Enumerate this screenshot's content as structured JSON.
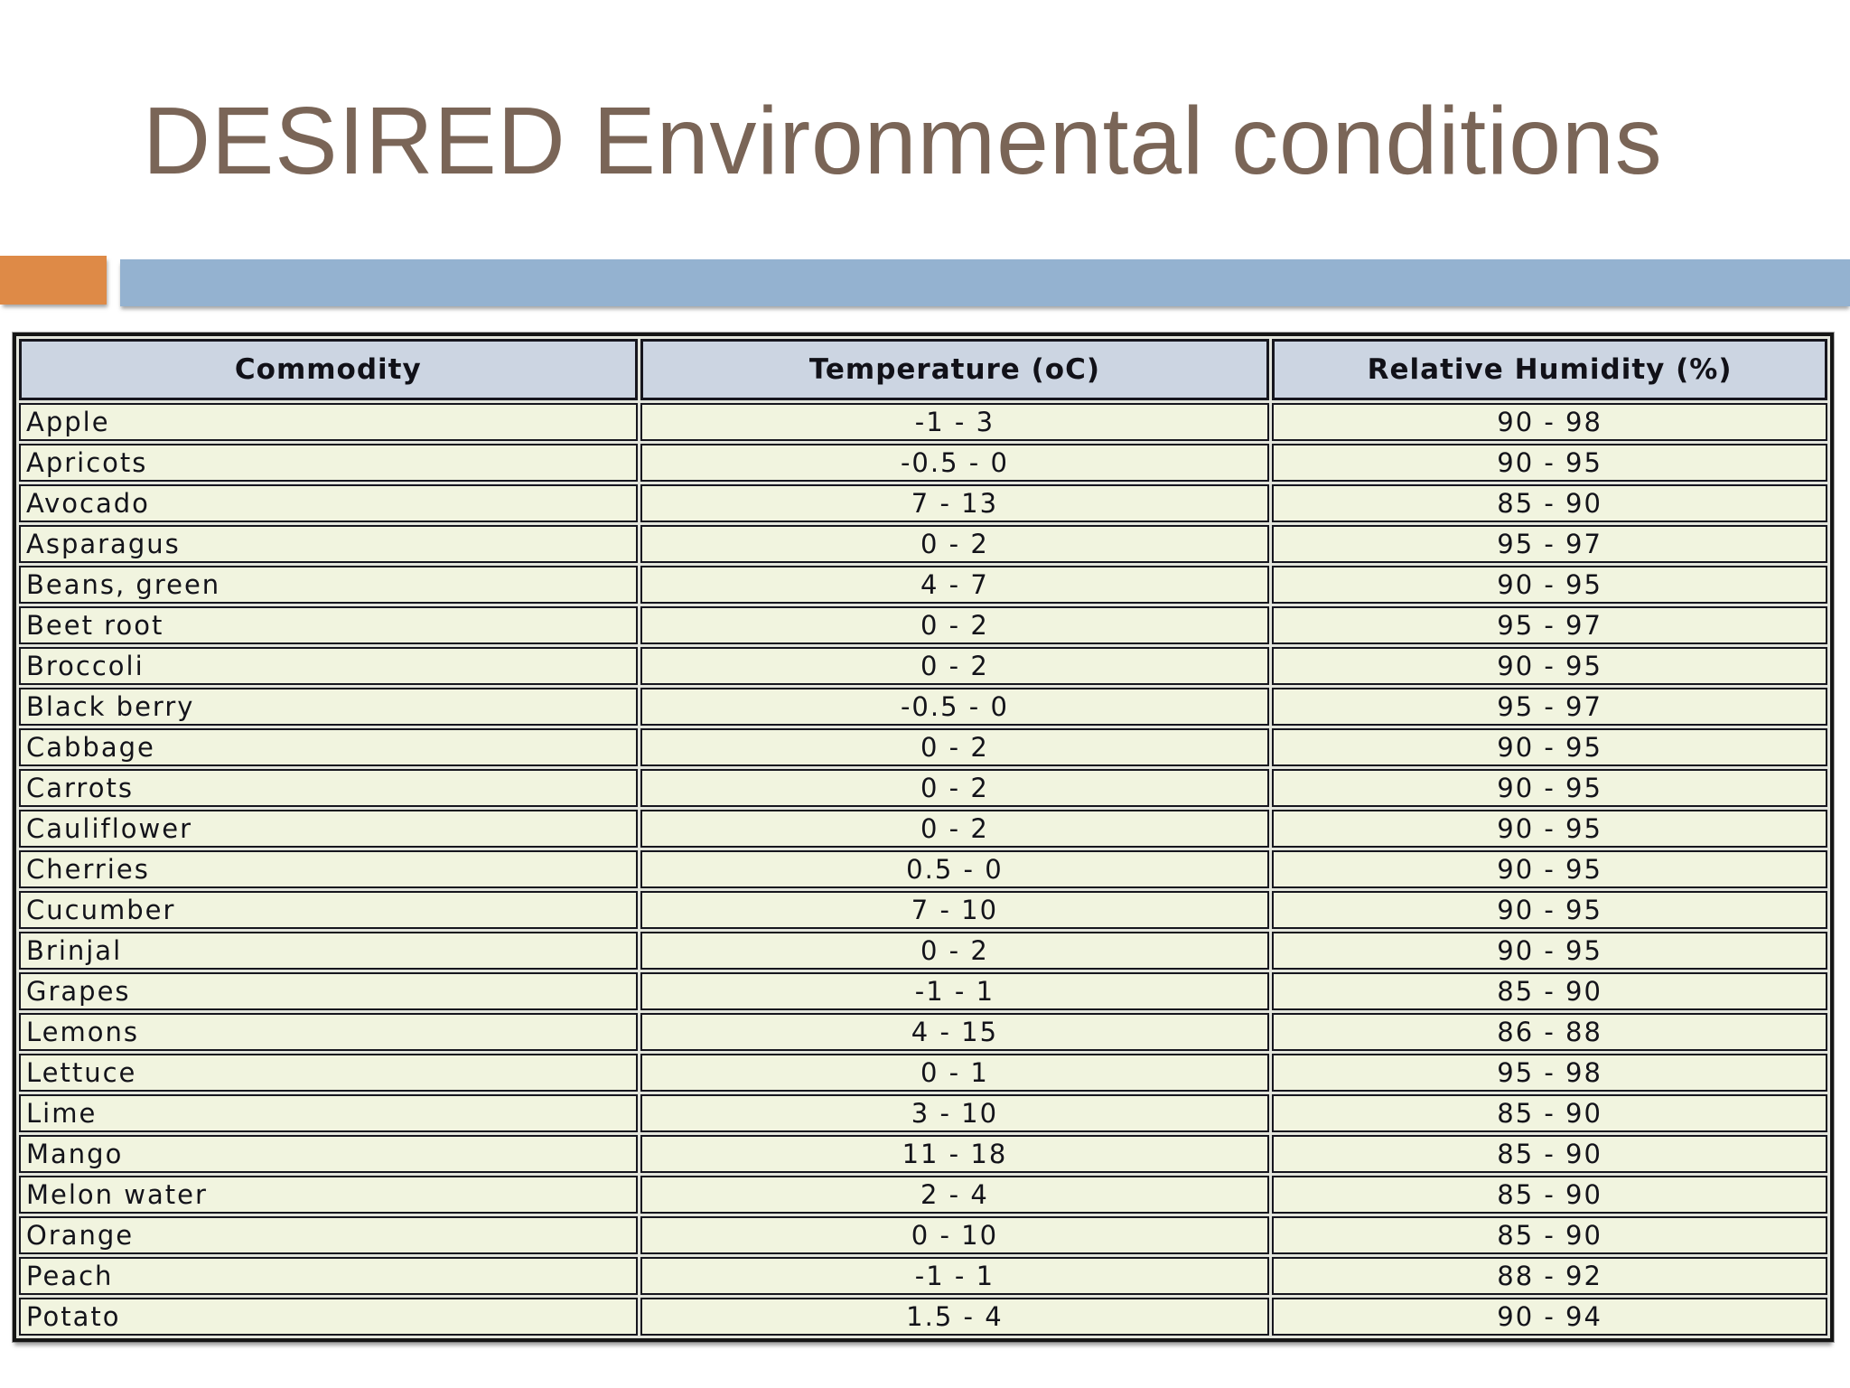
{
  "slide": {
    "title": "DESIRED Environmental conditions"
  },
  "accent": {
    "orange": "#de8a47",
    "blue": "#94b2d0"
  },
  "table": {
    "columns": [
      "Commodity",
      "Temperature (oC)",
      "Relative Humidity (%)"
    ],
    "rows": [
      [
        "Apple",
        "-1 - 3",
        "90 - 98"
      ],
      [
        "Apricots",
        "-0.5 - 0",
        "90 - 95"
      ],
      [
        "Avocado",
        "7 - 13",
        "85 - 90"
      ],
      [
        "Asparagus",
        "0 - 2",
        "95 - 97"
      ],
      [
        "Beans, green",
        "4 - 7",
        "90 - 95"
      ],
      [
        "Beet root",
        "0 - 2",
        "95 - 97"
      ],
      [
        "Broccoli",
        "0 - 2",
        "90 - 95"
      ],
      [
        "Black berry",
        "-0.5 - 0",
        "95 - 97"
      ],
      [
        "Cabbage",
        "0 - 2",
        "90 - 95"
      ],
      [
        "Carrots",
        "0 - 2",
        "90 - 95"
      ],
      [
        "Cauliflower",
        "0 - 2",
        "90 - 95"
      ],
      [
        "Cherries",
        "0.5 - 0",
        "90 - 95"
      ],
      [
        "Cucumber",
        "7 - 10",
        "90 - 95"
      ],
      [
        "Brinjal",
        "0 - 2",
        "90 - 95"
      ],
      [
        "Grapes",
        "-1 - 1",
        "85 - 90"
      ],
      [
        "Lemons",
        "4 - 15",
        "86 - 88"
      ],
      [
        "Lettuce",
        "0 - 1",
        "95 - 98"
      ],
      [
        "Lime",
        "3 - 10",
        "85 - 90"
      ],
      [
        "Mango",
        "11 - 18",
        "85 - 90"
      ],
      [
        "Melon water",
        "2 - 4",
        "85 - 90"
      ],
      [
        "Orange",
        "0 - 10",
        "85 - 90"
      ],
      [
        "Peach",
        "-1 - 1",
        "88 - 92"
      ],
      [
        "Potato",
        "1.5 - 4",
        "90 - 94"
      ]
    ]
  }
}
